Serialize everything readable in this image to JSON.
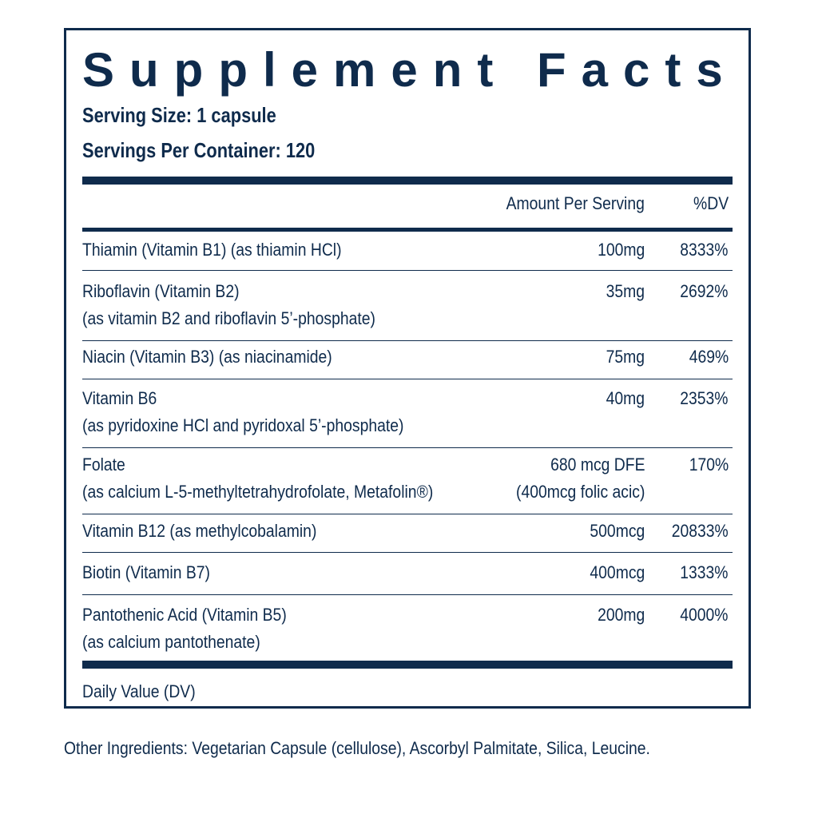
{
  "label": {
    "title": "Supplement Facts",
    "serving_size": "Serving Size: 1 capsule",
    "servings_per_container": "Servings Per Container: 120",
    "header_amount": "Amount Per Serving",
    "header_dv": "%DV",
    "rows": [
      {
        "name": "Thiamin (Vitamin B1) (as thiamin HCl)",
        "amount": "100mg",
        "dv": "8333%"
      },
      {
        "name": "Riboflavin (Vitamin B2)",
        "sub": "(as vitamin B2 and riboflavin 5’-phosphate)",
        "amount": "35mg",
        "dv": "2692%"
      },
      {
        "name": "Niacin (Vitamin B3) (as niacinamide)",
        "amount": "75mg",
        "dv": "469%"
      },
      {
        "name": "Vitamin B6",
        "sub": "(as pyridoxine HCl and pyridoxal 5’-phosphate)",
        "amount": "40mg",
        "dv": "2353%"
      },
      {
        "name": "Folate",
        "sub": "(as calcium L-5-methyltetrahydrofolate, Metafolin®)",
        "amount": "680 mcg  DFE",
        "amount2": "(400mcg folic acic)",
        "dv": "170%"
      },
      {
        "name": "Vitamin B12 (as methylcobalamin)",
        "amount": "500mcg",
        "dv": "20833%"
      },
      {
        "name": "Biotin (Vitamin B7)",
        "amount": "400mcg",
        "dv": "1333%"
      },
      {
        "name": "Pantothenic Acid (Vitamin B5)",
        "sub": "(as calcium pantothenate)",
        "amount": "200mg",
        "dv": "4000%"
      }
    ],
    "footnote": "Daily Value (DV)"
  },
  "other_ingredients": "Other Ingredients: Vegetarian Capsule (cellulose), Ascorbyl Palmitate, Silica, Leucine.",
  "colors": {
    "ink": "#0f2b4c",
    "background": "#ffffff"
  }
}
